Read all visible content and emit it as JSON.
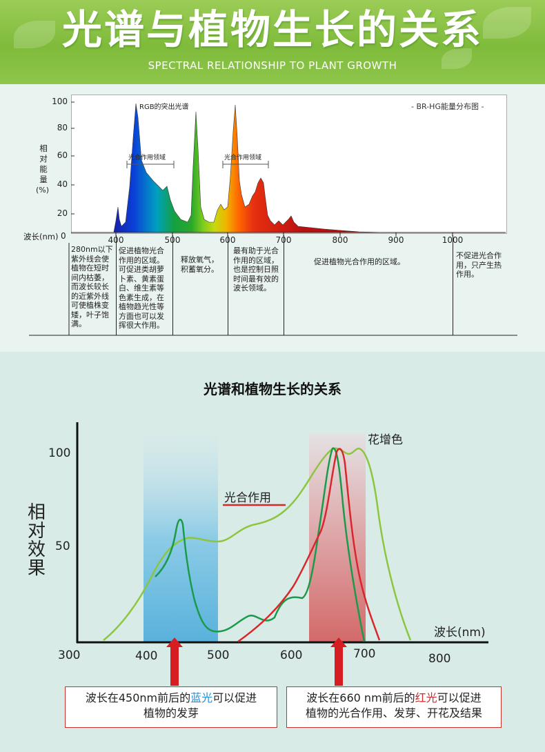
{
  "header": {
    "title": "光谱与植物生长的关系",
    "subtitle": "SPECTRAL RELATIONSHIP TO PLANT GROWTH"
  },
  "top_chart": {
    "y_axis_label_chars": [
      "相",
      "对",
      "能",
      "量"
    ],
    "y_axis_unit": "(%)",
    "y_ticks": [
      "100",
      "80",
      "60",
      "40",
      "20"
    ],
    "x_axis_label": "波长(nm)",
    "zero_label": "0",
    "x_ticks": [
      "400",
      "500",
      "600",
      "700",
      "800",
      "900",
      "1000"
    ],
    "rgb_label": "RGB的突出光谱",
    "legend": "- BR-HG能量分布图 -",
    "region1_label": "光合作用领域",
    "region2_label": "光合作用领域",
    "descriptions": [
      "280nm以下紫外线会使植物在短时间内枯萎，而波长较长的近紫外线可使植株变矮，叶子饱满。",
      "促进植物光合作用的区域。可促进类胡萝卜素、黄素蛋白、维生素等色素生成，在植物趋光性等方面也可以发挥很大作用。",
      "释放氧气，积蓄氧分。",
      "最有助于光合作用的区域，也是控制日照时间最有效的波长领域。",
      "促进植物光合作用的区域。",
      "不促进光合作用，只产生热作用。"
    ]
  },
  "bottom_chart": {
    "title": "光谱和植物生长的关系",
    "y_axis_label_chars": [
      "相",
      "对",
      "效",
      "果"
    ],
    "y_ticks": [
      "100",
      "50"
    ],
    "x_ticks_lower": [
      "300",
      "400",
      "500",
      "600",
      "700"
    ],
    "x_tick_800": "800",
    "x_axis_label": "波长(nm)",
    "photosynthesis_label": "光合作用",
    "flower_label": "花增色",
    "colors": {
      "blue_band": "#5bb4dc",
      "red_band": "#d36a6a",
      "light_green": "#8cc63f",
      "dark_green": "#1a9a4a",
      "red_curve": "#d9262a"
    }
  },
  "callouts": {
    "left": {
      "p1": "波长在450nm前后的",
      "highlight": "蓝光",
      "p2": "可以促进",
      "line2": "植物的发芽"
    },
    "right": {
      "p1": "波长在660 nm前后的",
      "highlight": "红光",
      "p2": "可以促进",
      "line2": "植物的光合作用、发芽、开花及结果"
    }
  }
}
